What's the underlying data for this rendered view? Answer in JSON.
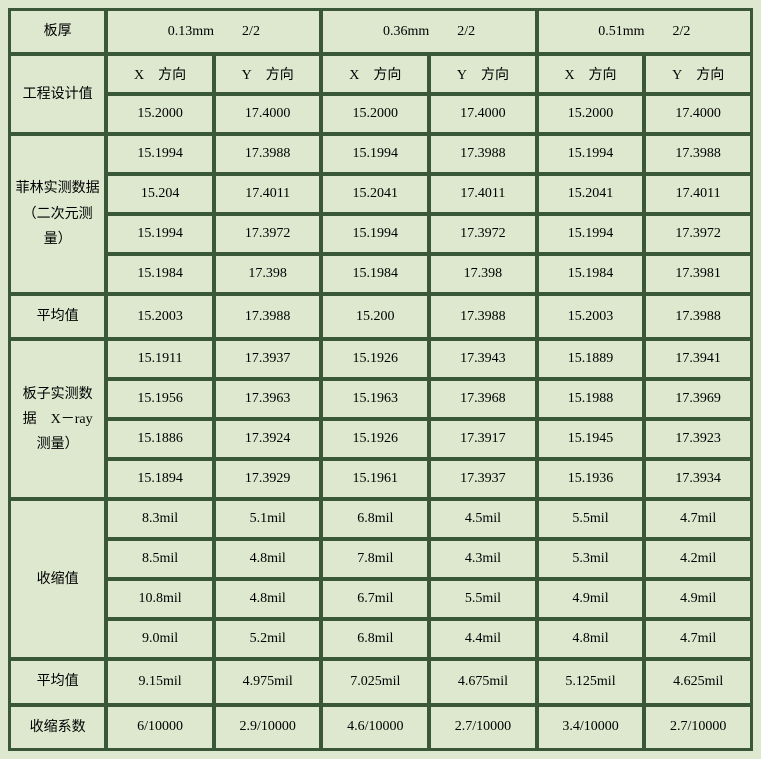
{
  "type": "table",
  "background_color": "#dde8cf",
  "border_color": "#3a5838",
  "font_family": "SimSun",
  "font_size": 14,
  "headers": {
    "thickness_label": "板厚",
    "cols": [
      "0.13mm  2/2",
      "0.36mm  2/2",
      "0.51mm  2/2"
    ],
    "dir_x": "X 方向",
    "dir_y": "Y 方向"
  },
  "labels": {
    "design": "工程设计值",
    "film": "菲林实测数据（二次元测量）",
    "avg1": "平均值",
    "board": "板子实测数据 X－ray 测量）",
    "shrink": "收缩值",
    "avg2": "平均值",
    "coef": "收缩系数"
  },
  "design": [
    "15.2000",
    "17.4000",
    "15.2000",
    "17.4000",
    "15.2000",
    "17.4000"
  ],
  "film": [
    [
      "15.1994",
      "17.3988",
      "15.1994",
      "17.3988",
      "15.1994",
      "17.3988"
    ],
    [
      "15.204",
      "17.4011",
      "15.2041",
      "17.4011",
      "15.2041",
      "17.4011"
    ],
    [
      "15.1994",
      "17.3972",
      "15.1994",
      "17.3972",
      "15.1994",
      "17.3972"
    ],
    [
      "15.1984",
      "17.398",
      "15.1984",
      "17.398",
      "15.1984",
      "17.3981"
    ]
  ],
  "avg1": [
    "15.2003",
    "17.3988",
    "15.200",
    "17.3988",
    "15.2003",
    "17.3988"
  ],
  "board": [
    [
      "15.1911",
      "17.3937",
      "15.1926",
      "17.3943",
      "15.1889",
      "17.3941"
    ],
    [
      "15.1956",
      "17.3963",
      "15.1963",
      "17.3968",
      "15.1988",
      "17.3969"
    ],
    [
      "15.1886",
      "17.3924",
      "15.1926",
      "17.3917",
      "15.1945",
      "17.3923"
    ],
    [
      "15.1894",
      "17.3929",
      "15.1961",
      "17.3937",
      "15.1936",
      "17.3934"
    ]
  ],
  "shrink": [
    [
      "8.3mil",
      "5.1mil",
      "6.8mil",
      "4.5mil",
      "5.5mil",
      "4.7mil"
    ],
    [
      "8.5mil",
      "4.8mil",
      "7.8mil",
      "4.3mil",
      "5.3mil",
      "4.2mil"
    ],
    [
      "10.8mil",
      "4.8mil",
      "6.7mil",
      "5.5mil",
      "4.9mil",
      "4.9mil"
    ],
    [
      "9.0mil",
      "5.2mil",
      "6.8mil",
      "4.4mil",
      "4.8mil",
      "4.7mil"
    ]
  ],
  "avg2": [
    "9.15mil",
    "4.975mil",
    "7.025mil",
    "4.675mil",
    "5.125mil",
    "4.625mil"
  ],
  "coef": [
    "6/10000",
    "2.9/10000",
    "4.6/10000",
    "2.7/10000",
    "3.4/10000",
    "2.7/10000"
  ]
}
